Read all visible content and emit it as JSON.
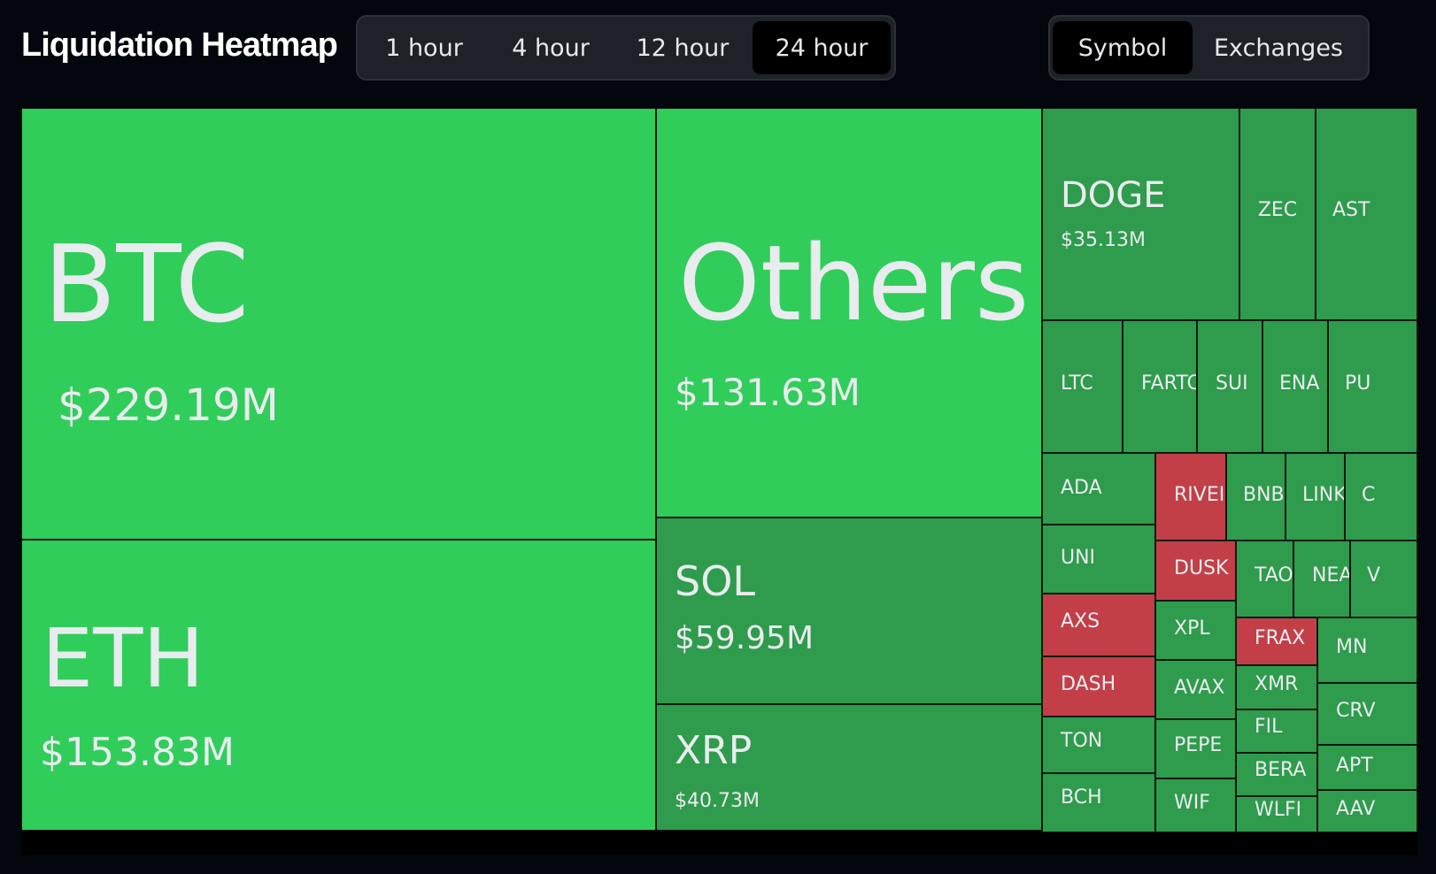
{
  "header": {
    "title": "Liquidation Heatmap",
    "time_options": [
      "1 hour",
      "4 hour",
      "12 hour",
      "24 hour"
    ],
    "selected_time": "24 hour",
    "view_options": [
      "Symbol",
      "Exchanges"
    ],
    "selected_view": "Symbol"
  },
  "colors": {
    "background": "#03060c",
    "bright_green": "#30cd5a",
    "green": "#2f9b4c",
    "red": "#c23f48",
    "label": "#e9ecef"
  },
  "tiles": [
    {
      "symbol": "BTC",
      "amount": "$229.19M",
      "color": "bright_green"
    },
    {
      "symbol": "Others",
      "amount": "$131.63M",
      "color": "bright_green"
    },
    {
      "symbol": "ETH",
      "amount": "$153.83M",
      "color": "bright_green"
    },
    {
      "symbol": "SOL",
      "amount": "$59.95M",
      "color": "green"
    },
    {
      "symbol": "XRP",
      "amount": "$40.73M",
      "color": "green"
    },
    {
      "symbol": "DOGE",
      "amount": "$35.13M",
      "color": "green"
    },
    {
      "symbol": "ZEC",
      "color": "green"
    },
    {
      "symbol": "AST",
      "color": "green"
    },
    {
      "symbol": "LTC",
      "color": "green"
    },
    {
      "symbol": "FARTC",
      "color": "green"
    },
    {
      "symbol": "SUI",
      "color": "green"
    },
    {
      "symbol": "ENA",
      "color": "green"
    },
    {
      "symbol": "PU",
      "color": "green"
    },
    {
      "symbol": "ADA",
      "color": "green"
    },
    {
      "symbol": "RIVEI",
      "color": "red"
    },
    {
      "symbol": "BNB",
      "color": "green"
    },
    {
      "symbol": "LINK",
      "color": "green"
    },
    {
      "symbol": "C",
      "color": "green"
    },
    {
      "symbol": "UNI",
      "color": "green"
    },
    {
      "symbol": "DUSK",
      "color": "red"
    },
    {
      "symbol": "TAO",
      "color": "green"
    },
    {
      "symbol": "NEA",
      "color": "green"
    },
    {
      "symbol": "V",
      "color": "green"
    },
    {
      "symbol": "AXS",
      "color": "red"
    },
    {
      "symbol": "XPL",
      "color": "green"
    },
    {
      "symbol": "FRAX",
      "color": "red"
    },
    {
      "symbol": "MN",
      "color": "green"
    },
    {
      "symbol": "DASH",
      "color": "red"
    },
    {
      "symbol": "AVAX",
      "color": "green"
    },
    {
      "symbol": "XMR",
      "color": "green"
    },
    {
      "symbol": "CRV",
      "color": "green"
    },
    {
      "symbol": "FIL",
      "color": "green"
    },
    {
      "symbol": "TON",
      "color": "green"
    },
    {
      "symbol": "PEPE",
      "color": "green"
    },
    {
      "symbol": "BERA",
      "color": "green"
    },
    {
      "symbol": "APT",
      "color": "green"
    },
    {
      "symbol": "BCH",
      "color": "green"
    },
    {
      "symbol": "WIF",
      "color": "green"
    },
    {
      "symbol": "WLFI",
      "color": "green"
    },
    {
      "symbol": "AAV",
      "color": "green"
    }
  ]
}
